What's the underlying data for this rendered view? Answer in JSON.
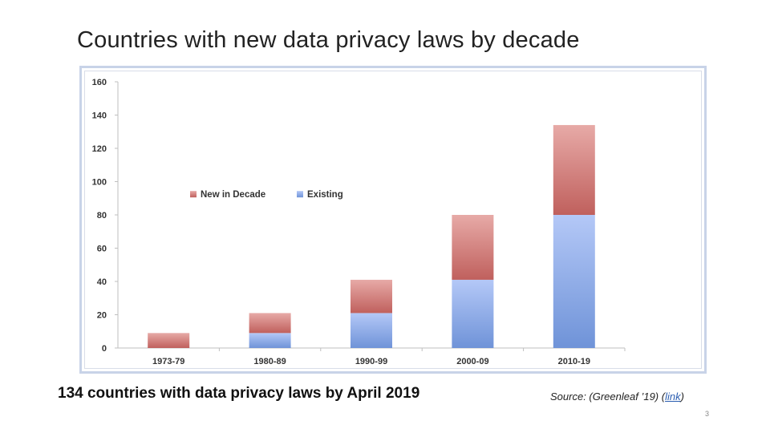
{
  "slide": {
    "title": "Countries with new data privacy laws by decade",
    "subtitle": "134 countries with data privacy laws by April 2019",
    "source_prefix": "Source: (Greenleaf ’19) (",
    "source_link": "link",
    "source_suffix": ")",
    "page_number": "3"
  },
  "chart_data": {
    "type": "bar",
    "stacked": true,
    "title": "",
    "xlabel": "",
    "ylabel": "",
    "categories": [
      "1973-79",
      "1980-89",
      "1990-99",
      "2000-09",
      "2010-19"
    ],
    "series": [
      {
        "name": "Existing",
        "values": [
          0,
          9,
          21,
          41,
          80
        ],
        "color_top": "#b4c8f7",
        "color_bottom": "#6f93d8"
      },
      {
        "name": "New in Decade",
        "values": [
          9,
          12,
          20,
          39,
          54
        ],
        "color_top": "#e7aaa7",
        "color_bottom": "#c0605d"
      }
    ],
    "legend_order": [
      "New in Decade",
      "Existing"
    ],
    "ylim": [
      0,
      160
    ],
    "yticks": [
      0,
      20,
      40,
      60,
      80,
      100,
      120,
      140,
      160
    ],
    "grid": false,
    "legend_position": "upper-left"
  }
}
